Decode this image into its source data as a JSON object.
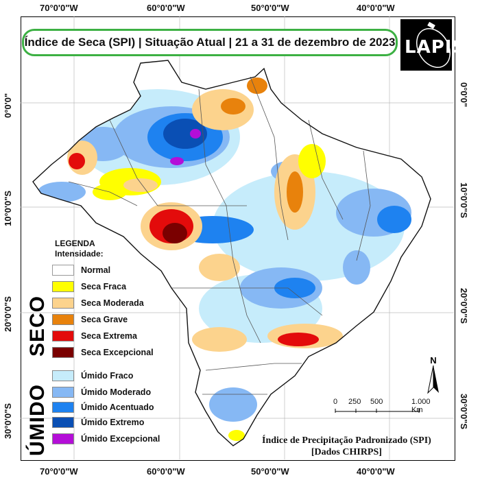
{
  "title": "Índice de Seca (SPI) | Situação Atual | 21 a 31 de dezembro de 2023",
  "logo": {
    "text": "LAPIS"
  },
  "axes": {
    "lon_labels": [
      "70°0'0\"W",
      "60°0'0\"W",
      "50°0'0\"W",
      "40°0'0\"W"
    ],
    "lat_labels": [
      "0°0'0\"",
      "10°0'0\"S",
      "20°0'0\"S",
      "30°0'0\"S"
    ]
  },
  "legend": {
    "title": "LEGENDA",
    "subtitle": "Intensidade:",
    "normal": {
      "label": "Normal",
      "color": "#ffffff"
    },
    "seco_label": "SECO",
    "seco_items": [
      {
        "label": "Seca Fraca",
        "color": "#ffff00"
      },
      {
        "label": "Seca Moderada",
        "color": "#fcd38d"
      },
      {
        "label": "Seca Grave",
        "color": "#e8820c"
      },
      {
        "label": "Seca Extrema",
        "color": "#e30b0b"
      },
      {
        "label": "Seca Excepcional",
        "color": "#7a0000"
      }
    ],
    "umido_label": "ÚMIDO",
    "umido_items": [
      {
        "label": "Úmido Fraco",
        "color": "#c6ecfb"
      },
      {
        "label": "Úmido Moderado",
        "color": "#86b8f4"
      },
      {
        "label": "Úmido Acentuado",
        "color": "#1e82f0"
      },
      {
        "label": "Úmido Extremo",
        "color": "#0a4fb4"
      },
      {
        "label": "Úmido Excepcional",
        "color": "#b40ed8"
      }
    ]
  },
  "scale_bar": {
    "labels": [
      "0",
      "250",
      "500",
      "1.000 Km"
    ]
  },
  "north": "N",
  "credit": {
    "line1": "Índice de Precipitação Padronizado (SPI)",
    "line2": "[Dados CHIRPS]"
  }
}
